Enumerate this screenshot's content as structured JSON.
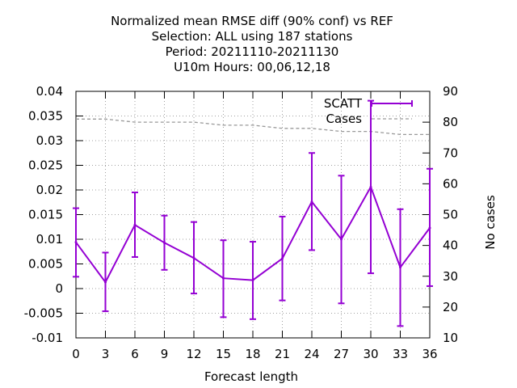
{
  "chart_data": {
    "type": "line",
    "title_lines": [
      "Normalized mean RMSE diff (90% conf) vs REF",
      "Selection: ALL using   187 stations",
      "Period: 20211110-20211130",
      "U10m   Hours:  00,06,12,18"
    ],
    "xlabel": "Forecast length",
    "ylabel": "",
    "y2label": "No cases",
    "xlim": [
      0,
      36
    ],
    "ylim": [
      -0.01,
      0.04
    ],
    "y2lim": [
      10,
      90
    ],
    "xticks": [
      0,
      3,
      6,
      9,
      12,
      15,
      18,
      21,
      24,
      27,
      30,
      33,
      36
    ],
    "yticks": [
      "-0.01",
      "-0.005",
      "0",
      "0.005",
      "0.01",
      "0.015",
      "0.02",
      "0.025",
      "0.03",
      "0.035",
      "0.04"
    ],
    "y2ticks": [
      "10",
      "20",
      "30",
      "40",
      "50",
      "60",
      "70",
      "80",
      "90"
    ],
    "grid": true,
    "legend_position": "top-right",
    "series": [
      {
        "name": "SCATT",
        "axis": "y",
        "color": "#9400d3",
        "x": [
          0,
          3,
          6,
          9,
          12,
          15,
          18,
          21,
          24,
          27,
          30,
          33,
          36
        ],
        "values": [
          0.0094,
          0.0013,
          0.0129,
          0.0093,
          0.0062,
          0.0021,
          0.0017,
          0.0061,
          0.0176,
          0.01,
          0.0206,
          0.0043,
          0.0123
        ],
        "lower": [
          0.0024,
          -0.0046,
          0.0064,
          0.0038,
          -0.001,
          -0.0058,
          -0.0062,
          -0.0024,
          0.0078,
          -0.003,
          0.0031,
          -0.0076,
          0.0005
        ],
        "upper": [
          0.0163,
          0.0073,
          0.0195,
          0.0148,
          0.0135,
          0.0098,
          0.0095,
          0.0146,
          0.0275,
          0.0229,
          0.0381,
          0.0161,
          0.0243
        ]
      },
      {
        "name": "Cases",
        "axis": "y2",
        "color": "#999999",
        "x": [
          0,
          3,
          6,
          9,
          12,
          15,
          18,
          21,
          24,
          27,
          30,
          33,
          36
        ],
        "values": [
          81,
          81,
          80,
          80,
          80,
          79,
          79,
          78,
          78,
          77,
          77,
          76,
          76
        ]
      }
    ]
  }
}
